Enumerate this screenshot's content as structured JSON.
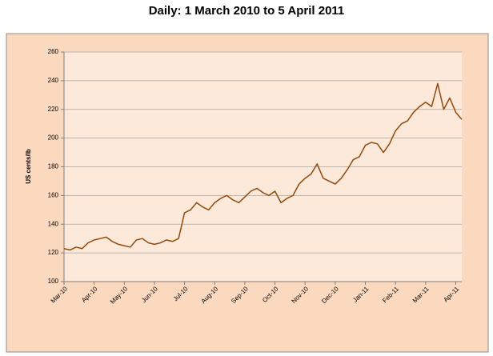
{
  "chart_data": {
    "type": "line",
    "title": "Daily: 1 March 2010 to 5 April 2011",
    "y_label": "US cents/lb",
    "categories": [
      "Mar-10",
      null,
      null,
      null,
      null,
      "Apr-10",
      null,
      null,
      null,
      null,
      "May-10",
      null,
      null,
      null,
      null,
      "Jun-10",
      null,
      null,
      null,
      null,
      "Jul-10",
      null,
      null,
      null,
      null,
      "Aug-10",
      null,
      null,
      null,
      null,
      "Sep-10",
      null,
      null,
      null,
      null,
      "Oct-10",
      null,
      null,
      null,
      null,
      "Nov-10",
      null,
      null,
      null,
      null,
      "Dec-10",
      null,
      null,
      null,
      null,
      "Jan-11",
      null,
      null,
      null,
      null,
      "Feb-11",
      null,
      null,
      null,
      null,
      "Mar-11",
      null,
      null,
      null,
      null,
      "Apr-11",
      null
    ],
    "values": [
      123,
      122,
      124,
      123,
      127,
      129,
      130,
      131,
      128,
      126,
      125,
      124,
      129,
      130,
      127,
      126,
      127,
      129,
      128,
      130,
      148,
      150,
      155,
      152,
      150,
      155,
      158,
      160,
      157,
      155,
      159,
      163,
      165,
      162,
      160,
      163,
      155,
      158,
      160,
      168,
      172,
      175,
      182,
      172,
      170,
      168,
      172,
      178,
      185,
      187,
      195,
      197,
      196,
      190,
      196,
      205,
      210,
      212,
      218,
      222,
      225,
      222,
      238,
      220,
      228,
      218,
      213
    ],
    "color": "#984807",
    "ylim": [
      100,
      260
    ],
    "yticks": [
      100,
      120,
      140,
      160,
      180,
      200,
      220,
      240,
      260
    ],
    "grid": true
  }
}
